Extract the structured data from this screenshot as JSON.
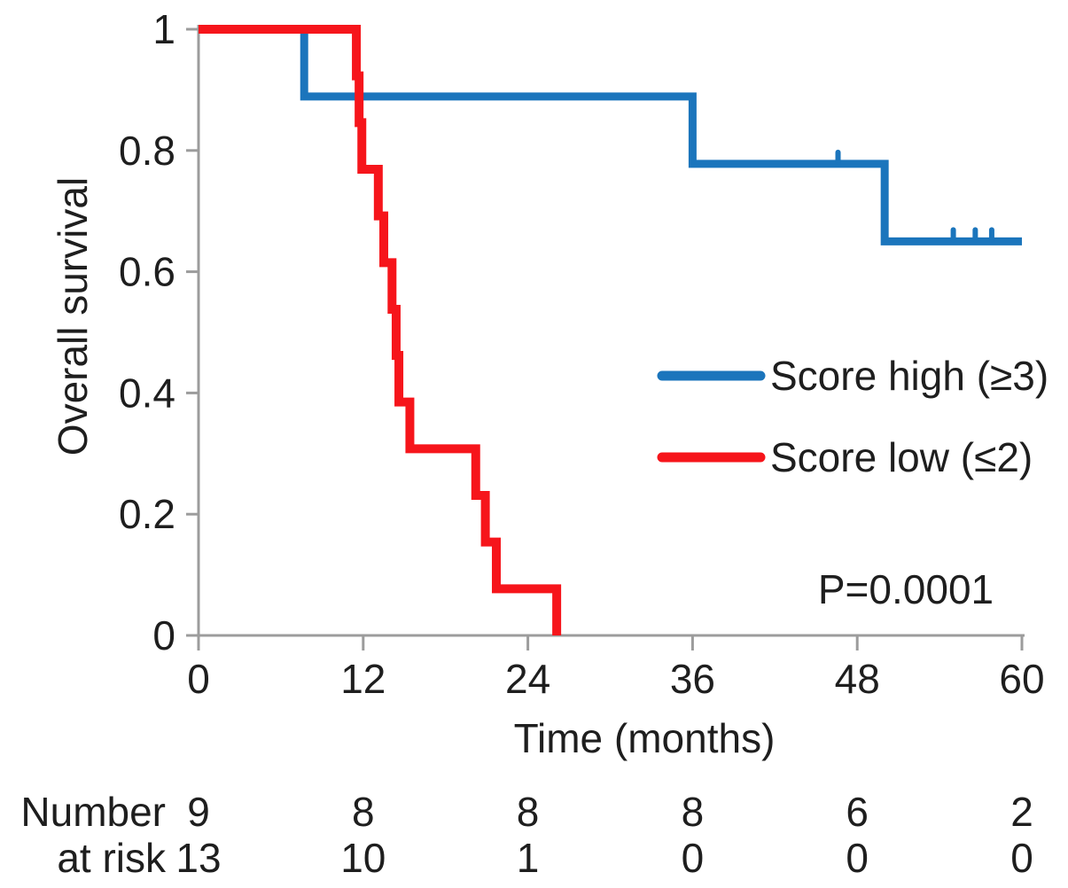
{
  "figure": {
    "background": "#ffffff",
    "text_color": "#1e1e1e",
    "axis_color": "#9c9c9c"
  },
  "y_axis": {
    "title": "Overall survival",
    "tick_labels": [
      "1",
      "0.8",
      "0.6",
      "0.4",
      "0.2",
      "0"
    ],
    "tick_values": [
      1,
      0.8,
      0.6,
      0.4,
      0.2,
      0
    ]
  },
  "x_axis": {
    "title": "Time (months)",
    "tick_labels": [
      "0",
      "12",
      "24",
      "36",
      "48",
      "60"
    ],
    "tick_values": [
      0,
      12,
      24,
      36,
      48,
      60
    ]
  },
  "legend": {
    "items": [
      {
        "label": "Score high (≥3)",
        "color": "#1b75bc"
      },
      {
        "label": "Score low (≤2)",
        "color": "#f6151b"
      }
    ]
  },
  "annotation": {
    "p_value": "P=0.0001"
  },
  "risk_table": {
    "label_line1": "Number",
    "label_line2": "at risk",
    "times": [
      0,
      12,
      24,
      36,
      48,
      60
    ],
    "rows": [
      {
        "group": "Score high (≥3)",
        "color": "#1b75bc",
        "values": [
          "9",
          "8",
          "8",
          "8",
          "6",
          "2"
        ]
      },
      {
        "group": "Score low (≤2)",
        "color": "#f6151b",
        "values": [
          "13",
          "10",
          "1",
          "0",
          "0",
          "0"
        ]
      }
    ]
  },
  "chart_data": {
    "type": "line",
    "subtype": "kaplan_meier_step",
    "title": "",
    "xlabel": "Time (months)",
    "ylabel": "Overall survival",
    "xlim": [
      0,
      60
    ],
    "ylim": [
      0,
      1
    ],
    "x_ticks": [
      0,
      12,
      24,
      36,
      48,
      60
    ],
    "y_ticks": [
      0,
      0.2,
      0.4,
      0.6,
      0.8,
      1
    ],
    "grid": false,
    "legend_position": "center-right",
    "annotations": [
      "P=0.0001"
    ],
    "series": [
      {
        "name": "Score high (≥3)",
        "color": "#1b75bc",
        "stroke_width": 9,
        "start": [
          0,
          1
        ],
        "drops": [
          [
            7.7,
            0.889
          ],
          [
            36,
            0.778
          ],
          [
            50,
            0.65
          ]
        ],
        "end_time": 60,
        "censor_marks": [
          [
            46.6,
            0.778
          ],
          [
            55.0,
            0.65
          ],
          [
            56.6,
            0.65
          ],
          [
            57.8,
            0.65
          ]
        ]
      },
      {
        "name": "Score low (≤2)",
        "color": "#f6151b",
        "stroke_width": 10,
        "start": [
          0,
          1
        ],
        "drops": [
          [
            11.5,
            0.923
          ],
          [
            11.7,
            0.846
          ],
          [
            11.9,
            0.769
          ],
          [
            13.1,
            0.692
          ],
          [
            13.5,
            0.615
          ],
          [
            14.1,
            0.538
          ],
          [
            14.4,
            0.462
          ],
          [
            14.6,
            0.385
          ],
          [
            15.4,
            0.308
          ],
          [
            20.2,
            0.231
          ],
          [
            20.9,
            0.154
          ],
          [
            21.7,
            0.077
          ],
          [
            26.1,
            0
          ]
        ],
        "end_time": 26.1,
        "censor_marks": []
      }
    ]
  }
}
